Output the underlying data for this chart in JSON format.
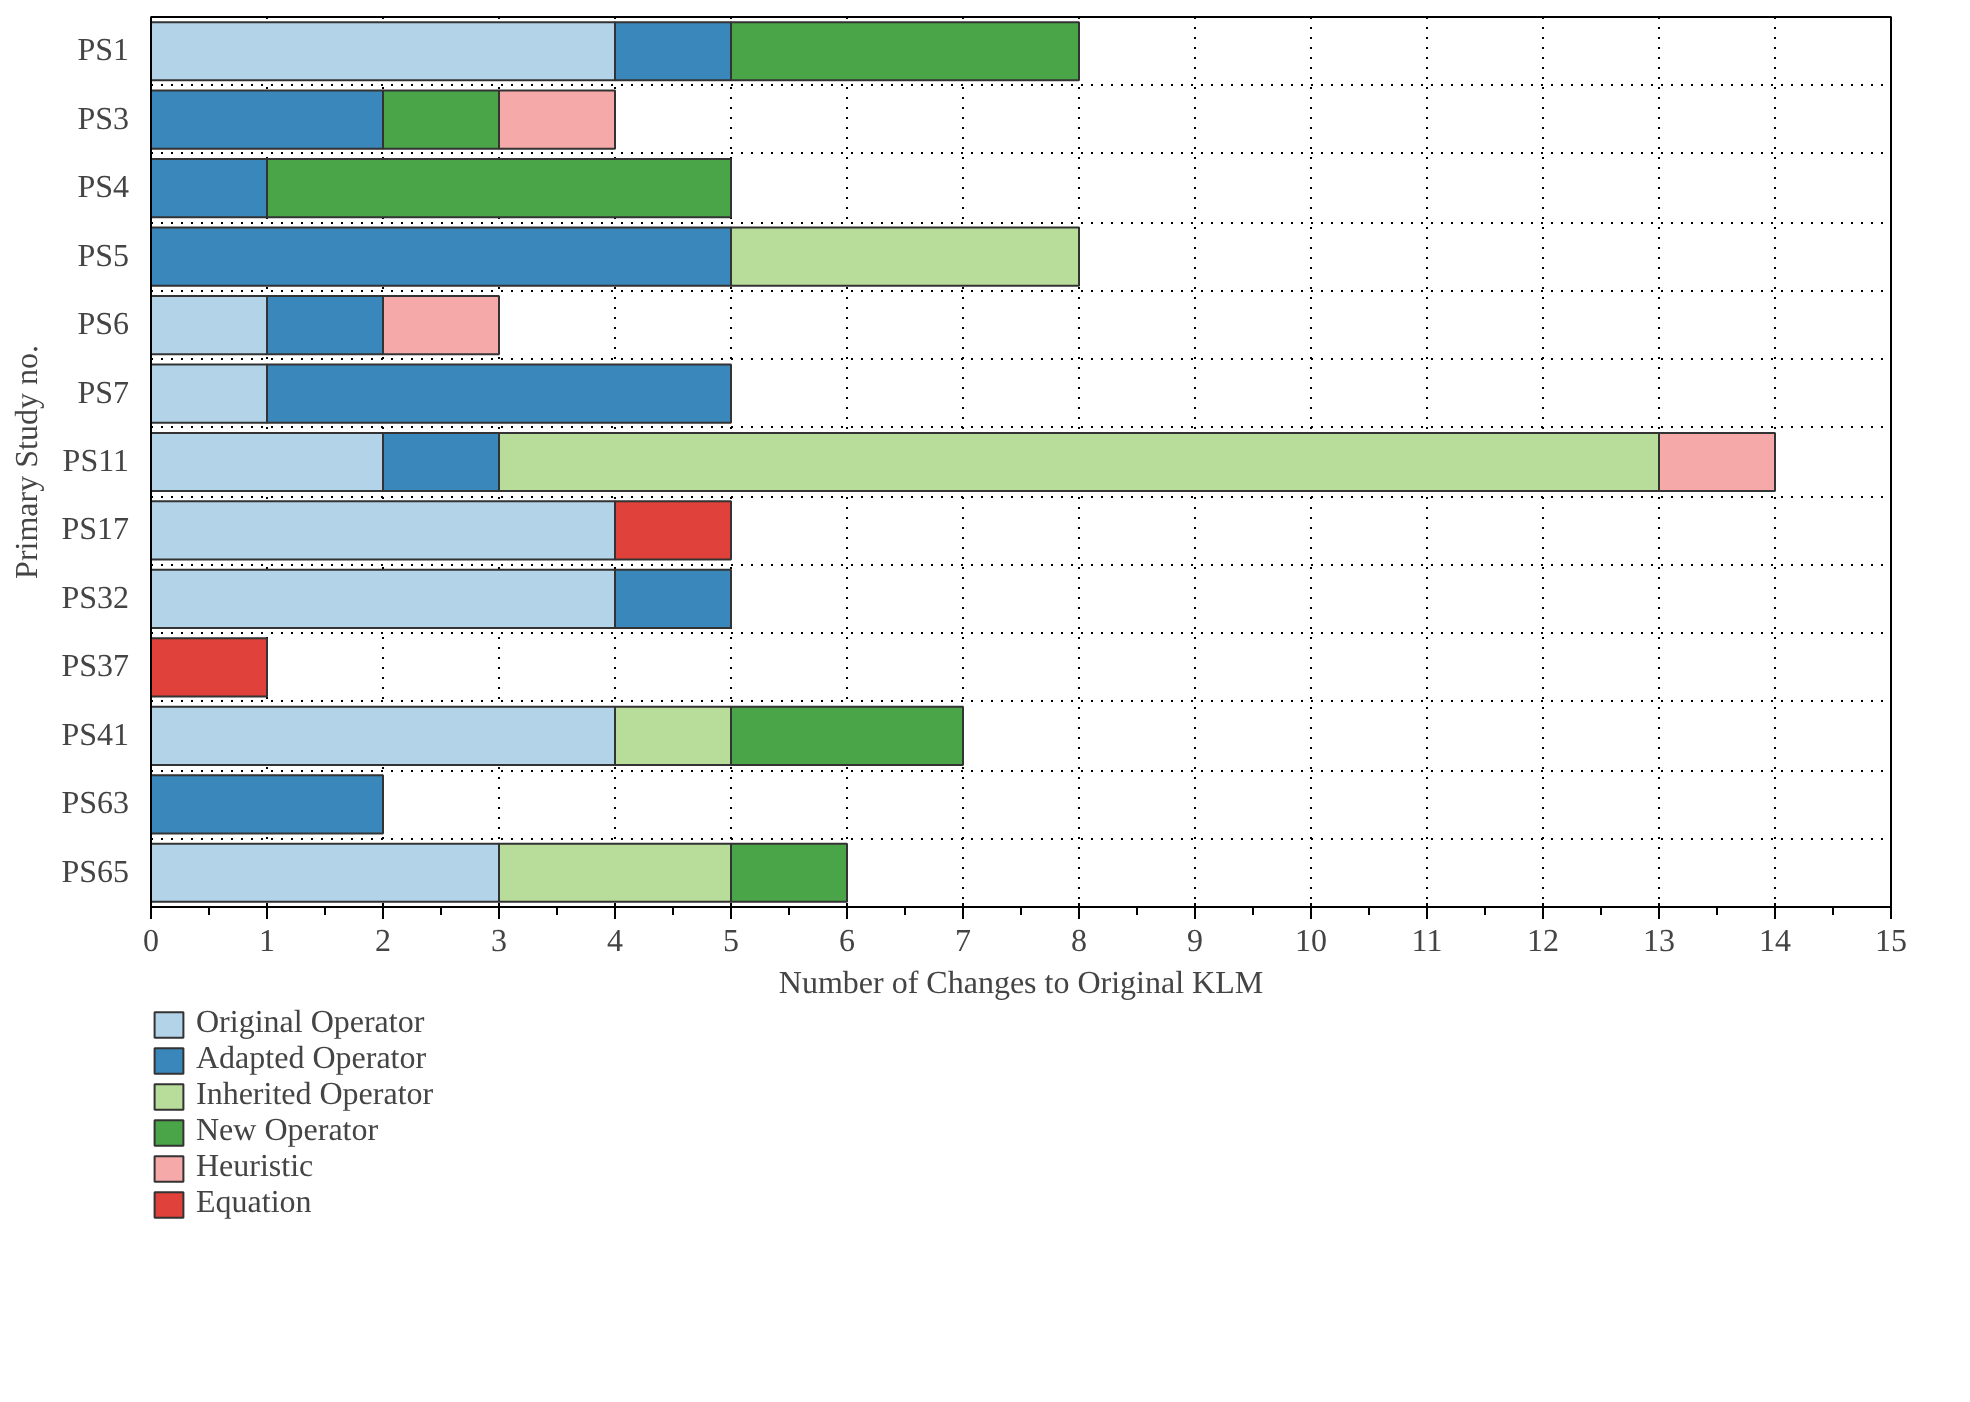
{
  "chart_data": {
    "type": "bar",
    "orientation": "horizontal",
    "stacked": true,
    "xlabel": "Number of Changes to Original KLM",
    "ylabel": "Primary Study no.",
    "categories": [
      "PS1",
      "PS3",
      "PS4",
      "PS5",
      "PS6",
      "PS7",
      "PS11",
      "PS17",
      "PS32",
      "PS37",
      "PS41",
      "PS63",
      "PS65"
    ],
    "series": [
      {
        "name": "Original Operator",
        "color": "#b3d4e8",
        "values": [
          4,
          null,
          null,
          null,
          1,
          1,
          2,
          4,
          4,
          null,
          4,
          null,
          3
        ]
      },
      {
        "name": "Adapted Operator",
        "color": "#3a87bb",
        "values": [
          1,
          2,
          1,
          5,
          1,
          4,
          1,
          null,
          1,
          null,
          null,
          2,
          null
        ]
      },
      {
        "name": "Inherited Operator",
        "color": "#b8dc9a",
        "values": [
          null,
          null,
          null,
          3,
          null,
          null,
          10,
          null,
          null,
          null,
          1,
          null,
          2
        ]
      },
      {
        "name": "New Operator",
        "color": "#4aa548",
        "values": [
          3,
          1,
          4,
          null,
          null,
          null,
          null,
          null,
          null,
          null,
          2,
          null,
          1
        ]
      },
      {
        "name": "Heuristic",
        "color": "#f6a9a9",
        "values": [
          null,
          1,
          null,
          null,
          1,
          null,
          1,
          null,
          null,
          null,
          null,
          null,
          null
        ]
      },
      {
        "name": "Equation",
        "color": "#e0413a",
        "values": [
          null,
          null,
          null,
          null,
          null,
          null,
          null,
          1,
          null,
          1,
          null,
          null,
          null
        ]
      }
    ],
    "xlim": [
      0,
      15
    ],
    "xticks": [
      0,
      1,
      2,
      3,
      4,
      5,
      6,
      7,
      8,
      9,
      10,
      11,
      12,
      13,
      14,
      15
    ],
    "grid": true,
    "legend": "bottom left"
  }
}
